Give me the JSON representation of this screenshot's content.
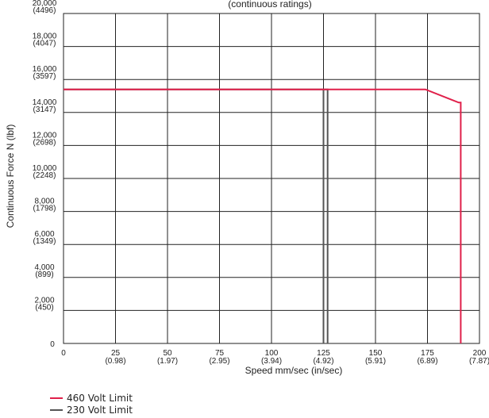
{
  "chart_data": {
    "type": "line",
    "title": "(continuous ratings)",
    "xlabel": "Speed mm/sec (in/sec)",
    "ylabel": "Continuous Force N (lbf)",
    "xlim": [
      0,
      200
    ],
    "ylim": [
      0,
      20000
    ],
    "x_ticks": [
      {
        "value": 0,
        "label": "0",
        "sub": ""
      },
      {
        "value": 25,
        "label": "25",
        "sub": "(0.98)"
      },
      {
        "value": 50,
        "label": "50",
        "sub": "(1.97)"
      },
      {
        "value": 75,
        "label": "75",
        "sub": "(2.95)"
      },
      {
        "value": 100,
        "label": "100",
        "sub": "(3.94)"
      },
      {
        "value": 125,
        "label": "125",
        "sub": "(4.92)"
      },
      {
        "value": 150,
        "label": "150",
        "sub": "(5.91)"
      },
      {
        "value": 175,
        "label": "175",
        "sub": "(6.89)"
      },
      {
        "value": 200,
        "label": "200",
        "sub": "(7.87)"
      }
    ],
    "y_ticks": [
      {
        "value": 0,
        "label": "0",
        "sub": ""
      },
      {
        "value": 2000,
        "label": "2,000",
        "sub": "(450)"
      },
      {
        "value": 4000,
        "label": "4,000",
        "sub": "(899)"
      },
      {
        "value": 6000,
        "label": "6,000",
        "sub": "(1349)"
      },
      {
        "value": 8000,
        "label": "8,000",
        "sub": "(1798)"
      },
      {
        "value": 10000,
        "label": "10,000",
        "sub": "(2248)"
      },
      {
        "value": 12000,
        "label": "12,000",
        "sub": "(2698)"
      },
      {
        "value": 14000,
        "label": "14,000",
        "sub": "(3147)"
      },
      {
        "value": 16000,
        "label": "16,000",
        "sub": "(3597)"
      },
      {
        "value": 18000,
        "label": "18,000",
        "sub": "(4047)"
      },
      {
        "value": 20000,
        "label": "20,000",
        "sub": "(4496)"
      }
    ],
    "grid": true,
    "legend_position": "bottom-left",
    "series": [
      {
        "name": "460 Volt Limit",
        "color": "#e0204a",
        "points": [
          [
            0,
            15400
          ],
          [
            174,
            15400
          ],
          [
            190,
            14600
          ],
          [
            191,
            14600
          ],
          [
            191,
            0
          ]
        ]
      },
      {
        "name": "230 Volt Limit",
        "color": "#555555",
        "points": [
          [
            0,
            15400
          ],
          [
            126,
            15400
          ],
          [
            127,
            15400
          ],
          [
            127,
            0
          ]
        ]
      }
    ],
    "extra_lines": [
      {
        "name": "230 Volt Limit",
        "color": "#555555",
        "points": [
          [
            125,
            15400
          ],
          [
            125,
            0
          ]
        ]
      }
    ]
  }
}
